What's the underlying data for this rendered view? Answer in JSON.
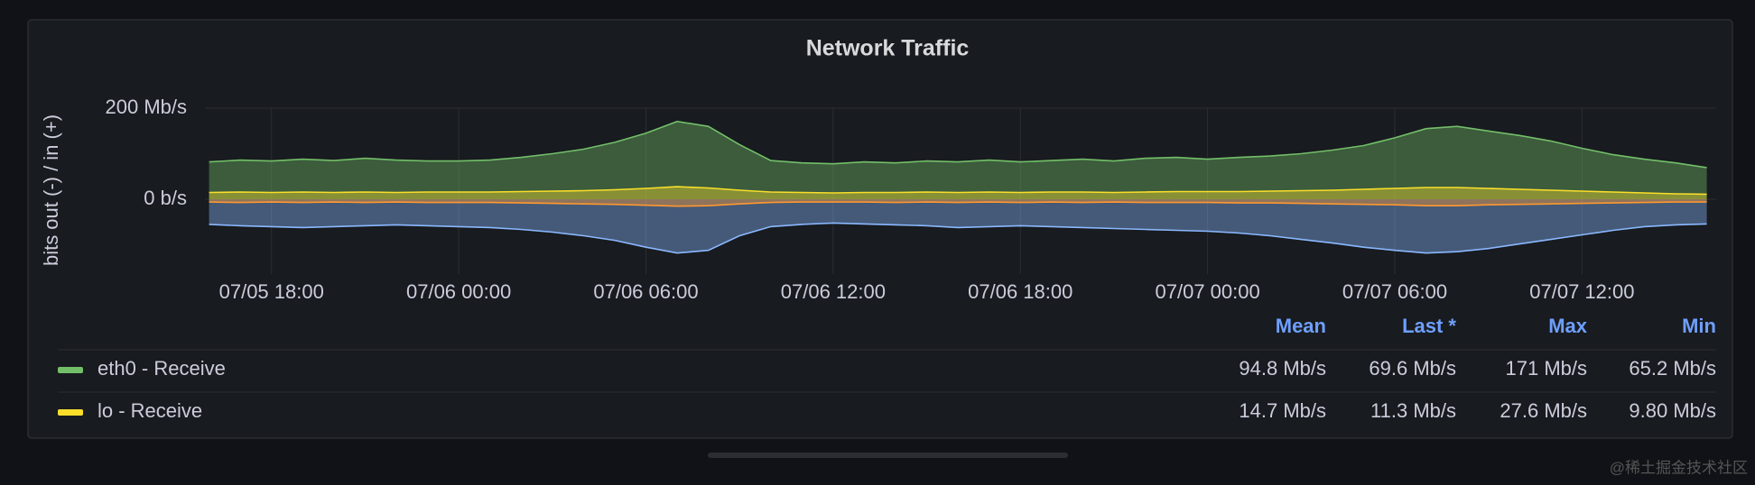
{
  "chart_data": {
    "type": "area",
    "title": "Network Traffic",
    "ylabel": "bits out (-) / in (+)",
    "x": [
      "07/05 16:00",
      "07/05 17:00",
      "07/05 18:00",
      "07/05 19:00",
      "07/05 20:00",
      "07/05 21:00",
      "07/05 22:00",
      "07/05 23:00",
      "07/06 00:00",
      "07/06 01:00",
      "07/06 02:00",
      "07/06 03:00",
      "07/06 04:00",
      "07/06 05:00",
      "07/06 06:00",
      "07/06 07:00",
      "07/06 08:00",
      "07/06 09:00",
      "07/06 10:00",
      "07/06 11:00",
      "07/06 12:00",
      "07/06 13:00",
      "07/06 14:00",
      "07/06 15:00",
      "07/06 16:00",
      "07/06 17:00",
      "07/06 18:00",
      "07/06 19:00",
      "07/06 20:00",
      "07/06 21:00",
      "07/06 22:00",
      "07/06 23:00",
      "07/07 00:00",
      "07/07 01:00",
      "07/07 02:00",
      "07/07 03:00",
      "07/07 04:00",
      "07/07 05:00",
      "07/07 06:00",
      "07/07 07:00",
      "07/07 08:00",
      "07/07 09:00",
      "07/07 10:00",
      "07/07 11:00",
      "07/07 12:00",
      "07/07 13:00",
      "07/07 14:00",
      "07/07 15:00",
      "07/07 16:00"
    ],
    "series": [
      {
        "name": "eth0 - Receive",
        "color": "#73bf69",
        "values": [
          82,
          86,
          84,
          88,
          85,
          90,
          86,
          84,
          84,
          86,
          92,
          100,
          110,
          125,
          145,
          171,
          160,
          120,
          85,
          80,
          78,
          82,
          80,
          84,
          82,
          86,
          82,
          85,
          88,
          84,
          90,
          92,
          88,
          92,
          95,
          100,
          108,
          118,
          135,
          155,
          160,
          150,
          140,
          128,
          112,
          98,
          88,
          80,
          69.6
        ]
      },
      {
        "name": "lo - Receive",
        "color": "#fade2a",
        "values": [
          15,
          16,
          15,
          16,
          15,
          16,
          15,
          16,
          16,
          16,
          17,
          18,
          19,
          21,
          24,
          27.6,
          25,
          20,
          16,
          15,
          14,
          15,
          15,
          16,
          15,
          16,
          15,
          16,
          16,
          15,
          16,
          17,
          17,
          17,
          18,
          19,
          20,
          22,
          24,
          26,
          26,
          24,
          22,
          20,
          18,
          16,
          14,
          12,
          11.3
        ]
      },
      {
        "color": "#8ab8ff",
        "values": [
          -55,
          -58,
          -60,
          -62,
          -60,
          -58,
          -56,
          -58,
          -60,
          -62,
          -66,
          -72,
          -80,
          -90,
          -105,
          -118,
          -112,
          -80,
          -60,
          -55,
          -52,
          -54,
          -56,
          -58,
          -62,
          -60,
          -58,
          -60,
          -62,
          -64,
          -66,
          -68,
          -70,
          -74,
          -80,
          -88,
          -96,
          -105,
          -112,
          -118,
          -115,
          -108,
          -98,
          -88,
          -78,
          -68,
          -60,
          -56,
          -54
        ]
      },
      {
        "color": "#ff9830",
        "values": [
          -6,
          -7,
          -6,
          -7,
          -6,
          -7,
          -6,
          -7,
          -7,
          -7,
          -8,
          -9,
          -10,
          -11,
          -13,
          -15,
          -14,
          -10,
          -7,
          -6,
          -6,
          -6,
          -7,
          -6,
          -7,
          -6,
          -7,
          -6,
          -7,
          -6,
          -7,
          -7,
          -7,
          -8,
          -8,
          -9,
          -10,
          -11,
          -12,
          -14,
          -14,
          -12,
          -11,
          -10,
          -9,
          -8,
          -7,
          -6,
          -6
        ]
      }
    ],
    "xlim": [
      "07/05 15:52",
      "07/07 16:18"
    ],
    "xticks": [
      "07/05 18:00",
      "07/06 00:00",
      "07/06 06:00",
      "07/06 12:00",
      "07/06 18:00",
      "07/07 00:00",
      "07/07 06:00",
      "07/07 12:00"
    ],
    "ylim": [
      -164,
      200
    ],
    "yticks": [
      {
        "value": 0,
        "label": "0 b/s"
      },
      {
        "value": 200,
        "label": "200 Mb/s"
      }
    ],
    "grid": true,
    "legend_columns": [
      "Mean",
      "Last *",
      "Max",
      "Min"
    ],
    "legend_stats": [
      [
        "94.8 Mb/s",
        "69.6 Mb/s",
        "171 Mb/s",
        "65.2 Mb/s"
      ],
      [
        "14.7 Mb/s",
        "11.3 Mb/s",
        "27.6 Mb/s",
        "9.80 Mb/s"
      ]
    ]
  },
  "watermark": "@稀土掘金技术社区"
}
